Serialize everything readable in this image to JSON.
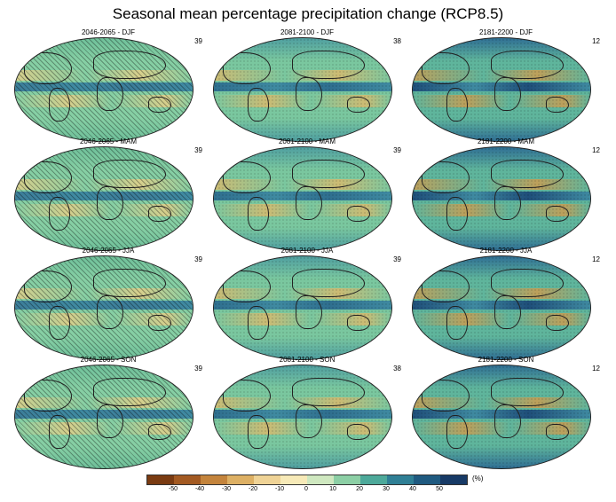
{
  "title": "Seasonal mean percentage precipitation change (RCP8.5)",
  "panels": [
    {
      "label": "2046-2065 - DJF",
      "count": "39",
      "style": "mild"
    },
    {
      "label": "2081-2100 - DJF",
      "count": "38",
      "style": "medium"
    },
    {
      "label": "2181-2200 - DJF",
      "count": "12",
      "style": "strong"
    },
    {
      "label": "2046-2065 - MAM",
      "count": "39",
      "style": "mild"
    },
    {
      "label": "2081-2100 - MAM",
      "count": "39",
      "style": "medium"
    },
    {
      "label": "2181-2200 - MAM",
      "count": "12",
      "style": "strong"
    },
    {
      "label": "2046-2065 - JJA",
      "count": "39",
      "style": "mild"
    },
    {
      "label": "2081-2100 - JJA",
      "count": "39",
      "style": "medium"
    },
    {
      "label": "2181-2200 - JJA",
      "count": "12",
      "style": "strong"
    },
    {
      "label": "2046-2065 - SON",
      "count": "39",
      "style": "mild"
    },
    {
      "label": "2081-2100 - SON",
      "count": "38",
      "style": "medium"
    },
    {
      "label": "2181-2200 - SON",
      "count": "12",
      "style": "strong"
    }
  ],
  "colorbar": {
    "unit": "(%)",
    "ticks": [
      "-50",
      "-40",
      "-30",
      "-20",
      "-10",
      "0",
      "10",
      "20",
      "30",
      "40",
      "50"
    ],
    "colors": [
      "#7a3b12",
      "#a35a22",
      "#c4843c",
      "#ddb064",
      "#efd396",
      "#f7eab8",
      "#cfe8c0",
      "#8ccfa5",
      "#4da99a",
      "#2f7f95",
      "#1f5a80",
      "#173a66"
    ]
  }
}
